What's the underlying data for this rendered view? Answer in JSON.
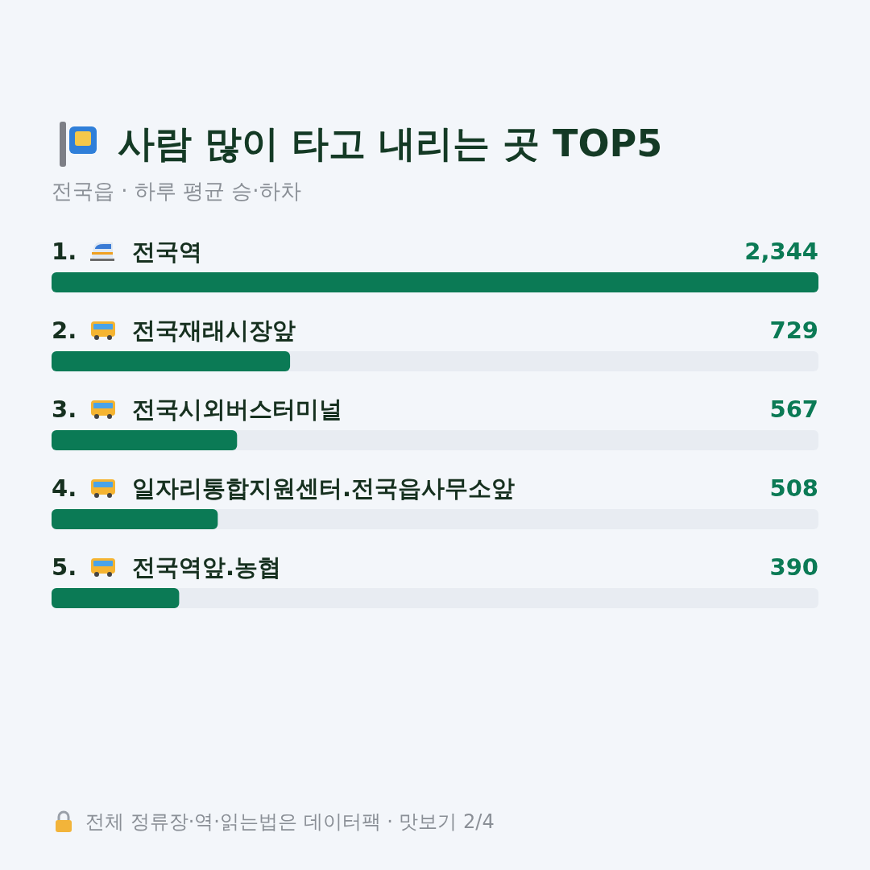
{
  "chart_data": {
    "type": "bar",
    "orientation": "horizontal",
    "title": "사람 많이 타고 내리는 곳 TOP5",
    "subtitle": "전국읍 · 하루 평균 승·하차",
    "categories": [
      "1. 전국역",
      "2. 전국재래시장앞",
      "3. 전국시외버스터미널",
      "4. 일자리통합지원센터.전국읍사무소앞",
      "5. 전국역앞.농협"
    ],
    "values": [
      2344,
      729,
      567,
      508,
      390
    ],
    "value_labels": [
      "2,344",
      "729",
      "567",
      "508",
      "390"
    ],
    "color": "#0b7a55",
    "legend": false,
    "grid": false,
    "annotations": [
      "전체 정류장·역·읽는법은 데이터팩 · 맛보기 2/4"
    ]
  }
}
